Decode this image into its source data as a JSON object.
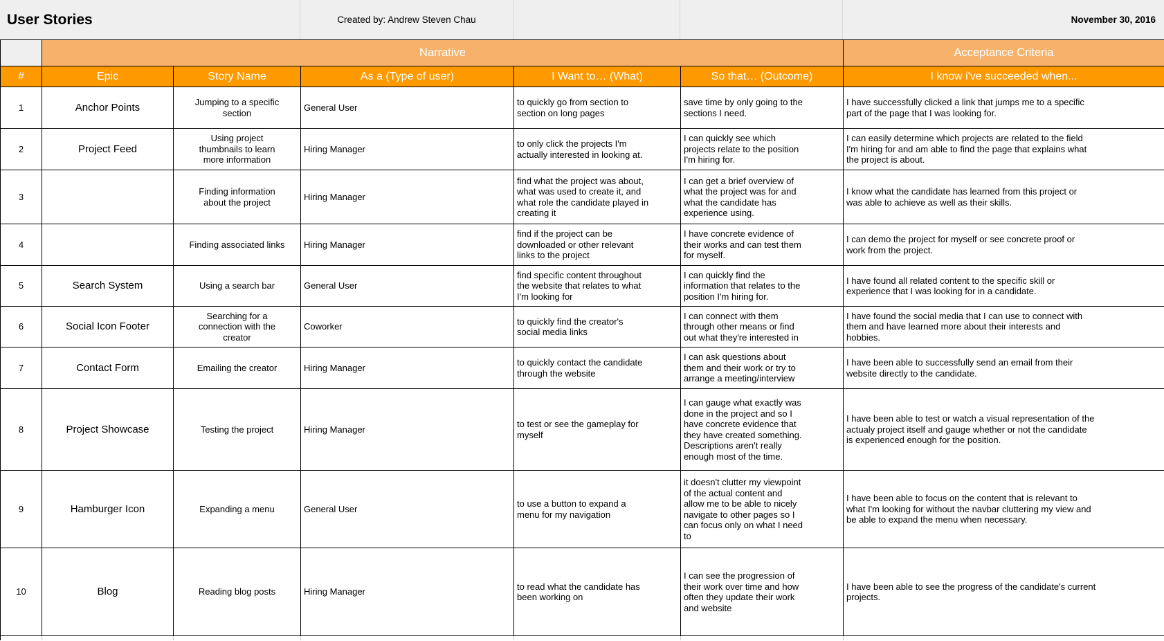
{
  "title_bar": {
    "title": "User Stories",
    "created_by": "Created by: Andrew Steven Chau",
    "date": "November 30, 2016"
  },
  "banner": {
    "narrative": "Narrative",
    "acceptance": "Acceptance Criteria"
  },
  "columns": {
    "num": "#",
    "epic": "Epic",
    "story": "Story Name",
    "as_a": "As a (Type of user)",
    "want": "I Want to… (What)",
    "outcome": "So that… (Outcome)",
    "acceptance": "I know i've succeeded when..."
  },
  "colors": {
    "header_orange": "#ff9900",
    "banner_orange": "#f6b26b",
    "title_gray": "#efefef",
    "grid_border": "#000000"
  },
  "rows": [
    {
      "num": "1",
      "epic": "Anchor Points",
      "story": "Jumping to a specific\nsection",
      "as_a": "General User",
      "want": "to quickly go from section to\nsection on long pages",
      "outcome": "save time by only going to the\nsections I need.",
      "acceptance": "I have successfully clicked a link that jumps me to a specific\npart of the page that I was looking for."
    },
    {
      "num": "2",
      "epic": "Project Feed",
      "story": "Using project\nthumbnails to learn\nmore information",
      "as_a": "Hiring Manager",
      "want": "to only click the projects I'm\nactually interested in looking at.",
      "outcome": "I can quickly see which\nprojects relate to the position\nI'm hiring for.",
      "acceptance": "I can easily determine which projects are related to the field\nI'm hiring for and am able to find the page that explains what\nthe project is about."
    },
    {
      "num": "3",
      "epic": "",
      "story": "Finding information\nabout the project",
      "as_a": "Hiring Manager",
      "want": "find what the project was about,\nwhat was used to create it, and\nwhat role the candidate played in\ncreating it",
      "outcome": "I can get a brief overview of\nwhat the project was for and\nwhat the candidate has\nexperience using.",
      "acceptance": "I know what the candidate has learned from this project or\nwas able to achieve as well as their skills."
    },
    {
      "num": "4",
      "epic": "",
      "story": "Finding associated links",
      "as_a": "Hiring Manager",
      "want": "find if the project can be\ndownloaded or other relevant\nlinks to the project",
      "outcome": "I have concrete evidence of\ntheir works and can test them\nfor myself.",
      "acceptance": "I can demo the project for myself or see concrete proof or\nwork from the project."
    },
    {
      "num": "5",
      "epic": "Search System",
      "story": "Using a search bar",
      "as_a": "General User",
      "want": "find specific content throughout\nthe website that relates to what\nI'm looking for",
      "outcome": "I can quickly find the\ninformation that relates to the\nposition I'm hiring for.",
      "acceptance": "I have found all related content to the specific skill or\nexperience that I was looking for in a candidate."
    },
    {
      "num": "6",
      "epic": "Social Icon Footer",
      "story": "Searching for a\nconnection with the\ncreator",
      "as_a": "Coworker",
      "want": "to quickly find the creator's\nsocial media links",
      "outcome": "I can connect with them\nthrough other means or find\nout what they're interested in",
      "acceptance": "I have found the social media that I can use to connect with\nthem and have learned more about their interests and\nhobbies."
    },
    {
      "num": "7",
      "epic": "Contact Form",
      "story": "Emailing the creator",
      "as_a": "Hiring Manager",
      "want": "to quickly contact the candidate\nthrough the website",
      "outcome": "I can ask questions about\nthem and their work or try to\narrange a meeting/interview",
      "acceptance": "I have been able to successfully send an email from their\nwebsite directly to the candidate."
    },
    {
      "num": "8",
      "epic": "Project Showcase",
      "story": "Testing the project",
      "as_a": "Hiring Manager",
      "want": "to test or see the gameplay for\nmyself",
      "outcome": "I can gauge what exactly was\ndone in the project and so I\nhave concrete evidence that\nthey have created something.\nDescriptions aren't really\nenough most of the time.",
      "acceptance": "I have been able to test or watch a visual representation of the\nactualy project itself and gauge whether or not the candidate\nis experienced enough for the position."
    },
    {
      "num": "9",
      "epic": "Hamburger Icon",
      "story": "Expanding a menu",
      "as_a": "General User",
      "want": "to use a button to expand a\nmenu for my navigation",
      "outcome": "it doesn't clutter my viewpoint\nof the actual content and\nallow me to be able to nicely\nnavigate to other pages so I\ncan focus only on what I need\nto",
      "acceptance": "I have been able to focus on the content that is relevant to\nwhat I'm looking for without the navbar cluttering my view and\nbe able to expand the menu when necessary."
    },
    {
      "num": "10",
      "epic": "Blog",
      "story": "Reading blog posts",
      "as_a": "Hiring Manager",
      "want": "to read what the candidate has\nbeen working on",
      "outcome": "I can see the progression of\ntheir work over time and how\noften they update their work\nand website",
      "acceptance": "I have been able to see the progress of the candidate's current\nprojects."
    }
  ]
}
